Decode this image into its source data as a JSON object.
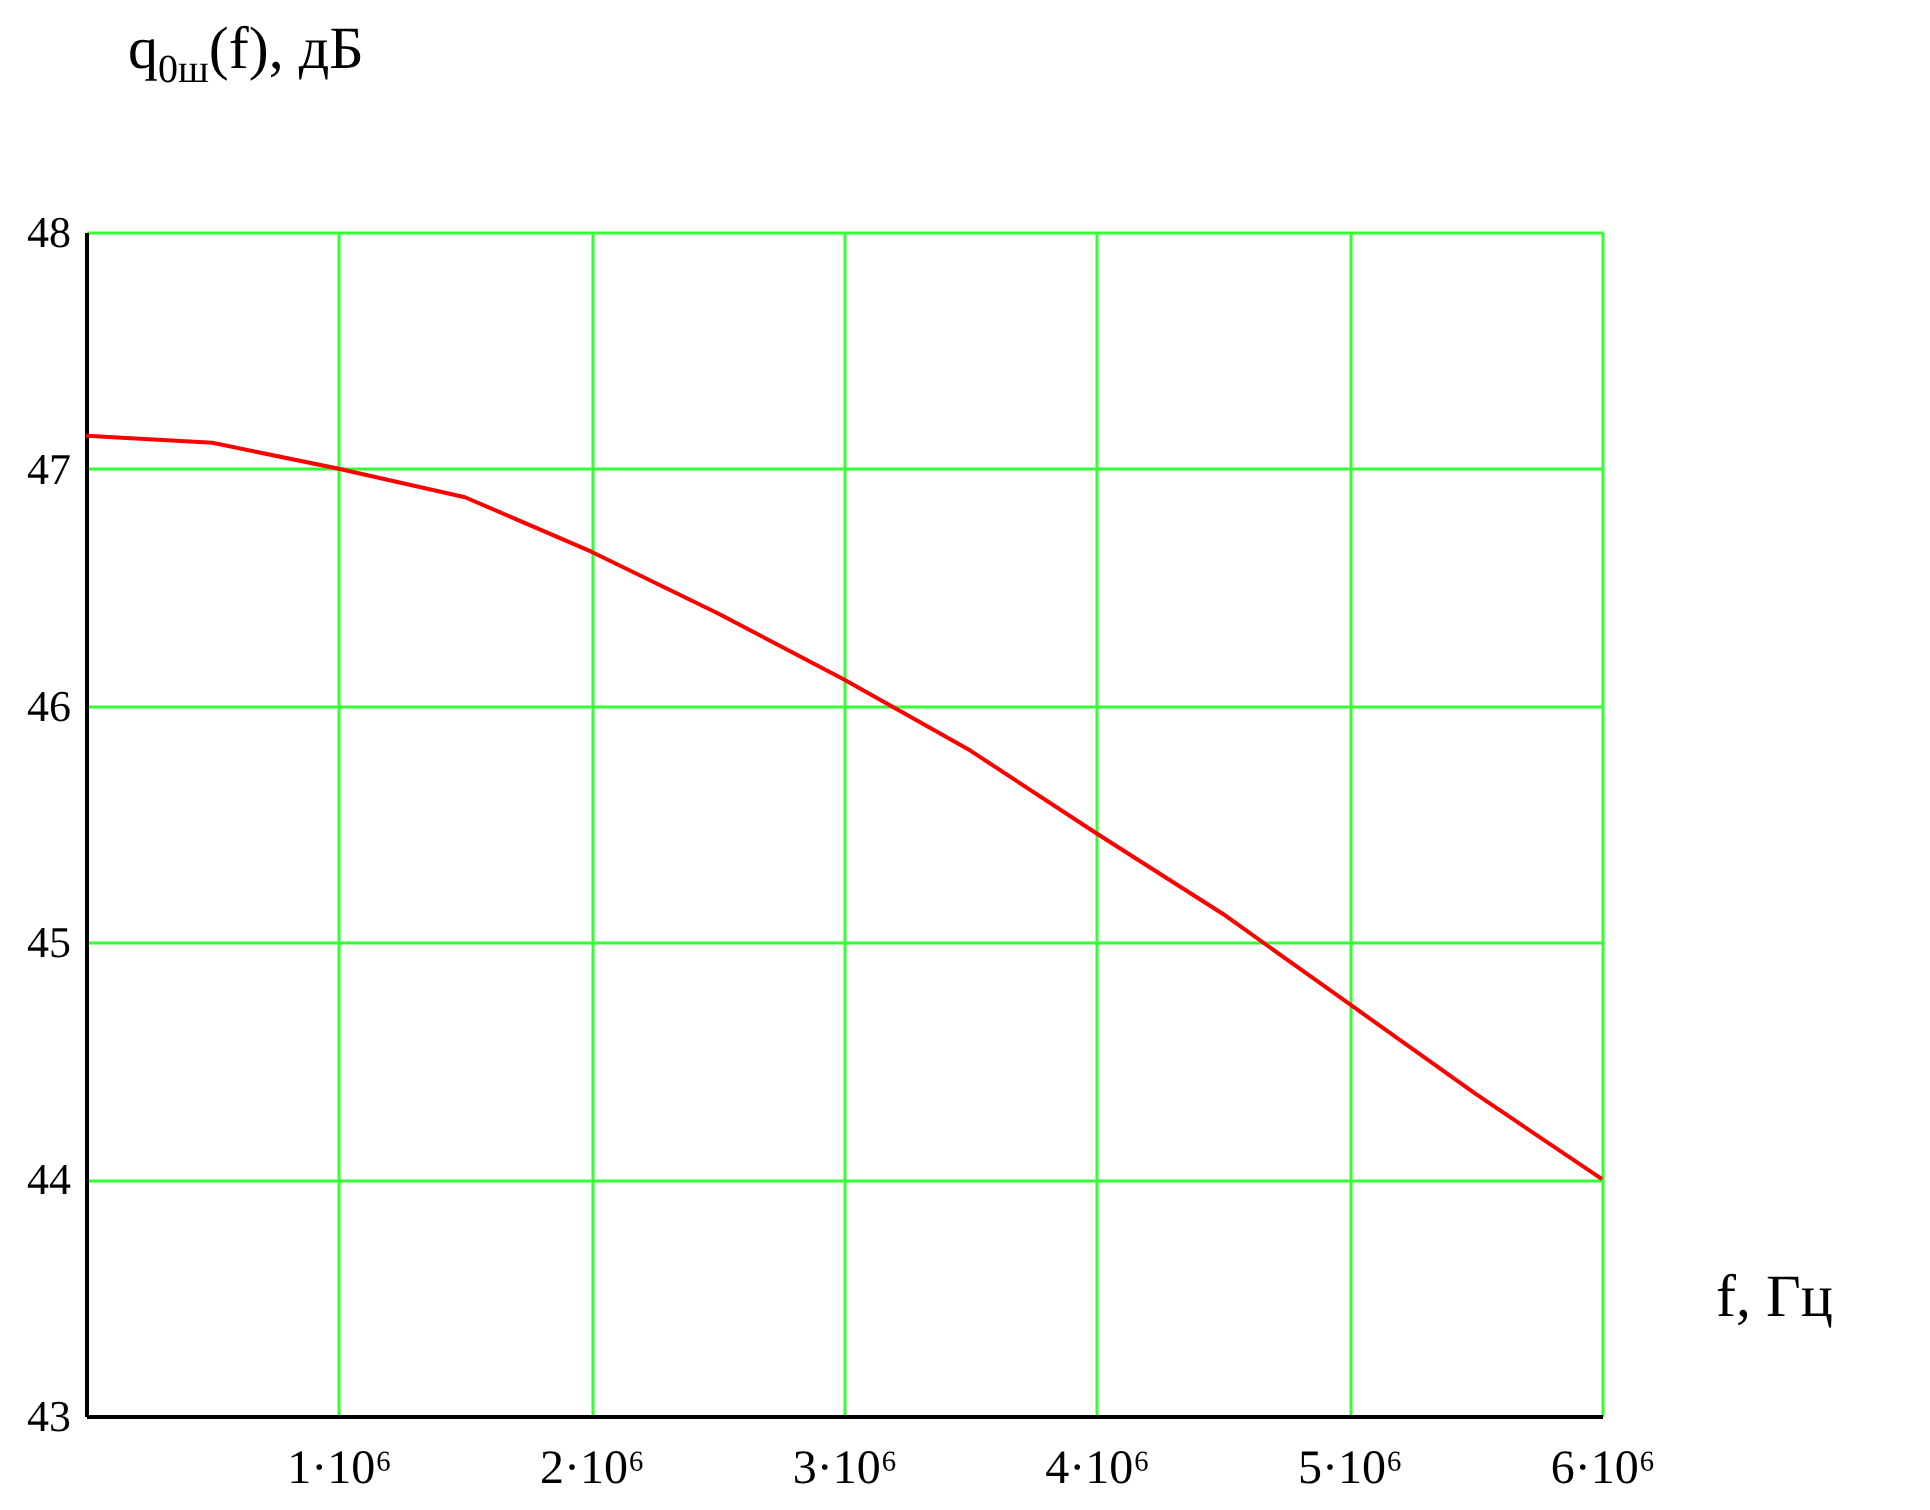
{
  "chart_data": {
    "type": "line",
    "xlabel": "f, Гц",
    "ylabel": "q$_{0ш}$(f), дБ",
    "x": [
      0,
      500000,
      1000000,
      1500000,
      2000000,
      2500000,
      3000000,
      3500000,
      4000000,
      4500000,
      5000000,
      5500000,
      6000000
    ],
    "series": [
      {
        "color": "#ff0000",
        "values": [
          47.14,
          47.11,
          47.0,
          46.88,
          46.65,
          46.39,
          46.11,
          45.81,
          45.46,
          45.12,
          44.74,
          44.36,
          44.0
        ]
      }
    ],
    "xlim": [
      0,
      6000000
    ],
    "ylim": [
      43,
      48
    ],
    "xticks": [
      {
        "value": 1000000,
        "label": "1·10⁶"
      },
      {
        "value": 2000000,
        "label": "2·10⁶"
      },
      {
        "value": 3000000,
        "label": "3·10⁶"
      },
      {
        "value": 4000000,
        "label": "4·10⁶"
      },
      {
        "value": 5000000,
        "label": "5·10⁶"
      },
      {
        "value": 6000000,
        "label": "6·10⁶"
      }
    ],
    "yticks": [
      43,
      44,
      45,
      46,
      47,
      48
    ],
    "grid": true,
    "line_style": "solid",
    "marker": "none"
  }
}
